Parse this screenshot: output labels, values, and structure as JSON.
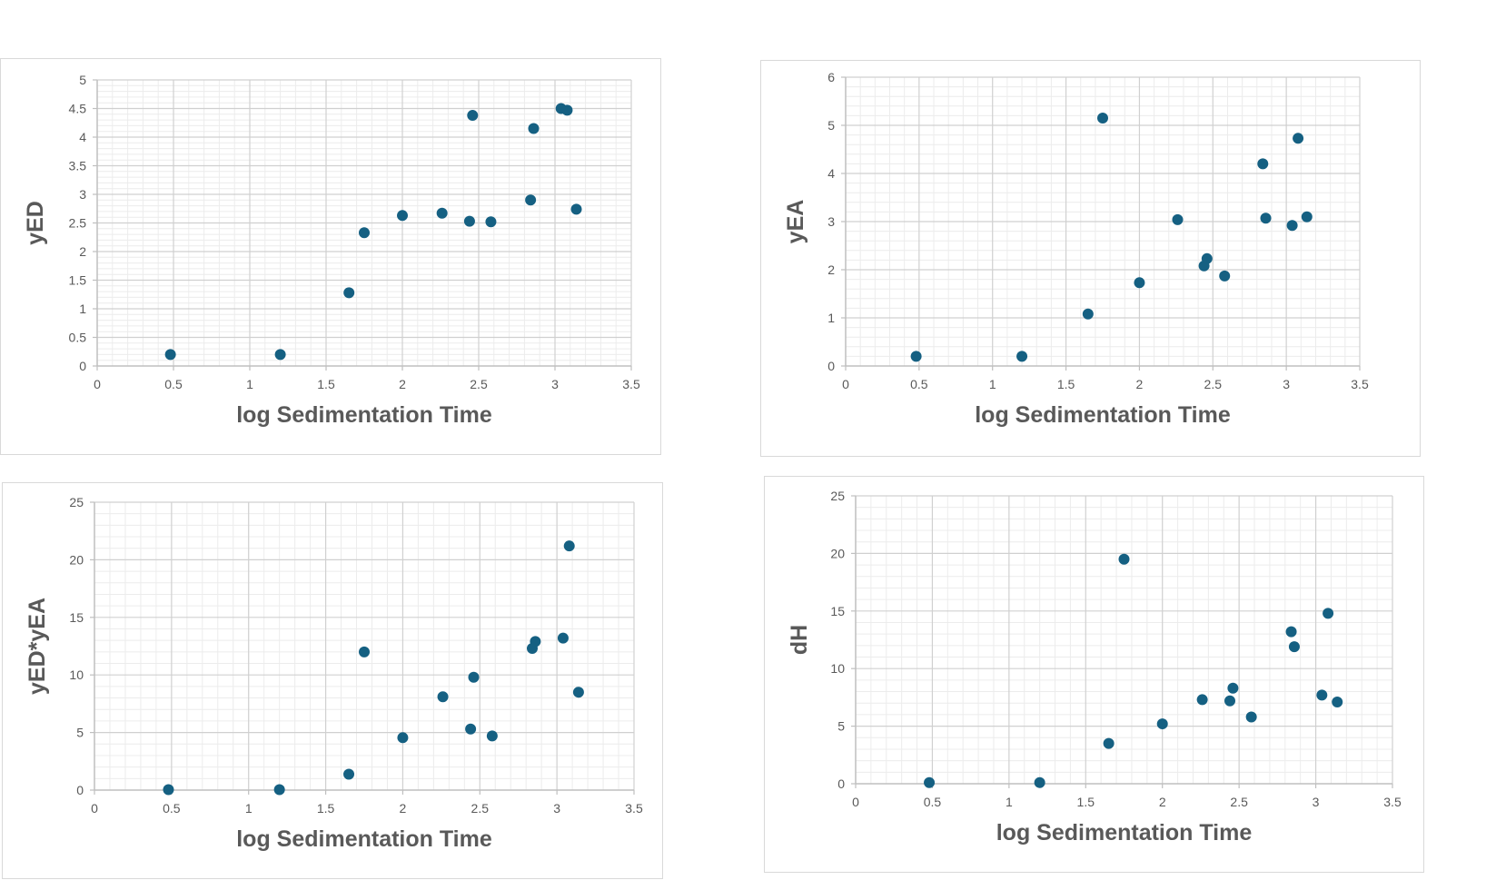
{
  "chart_data": [
    {
      "type": "scatter",
      "title": "",
      "xlabel": "log Sedimentation Time",
      "ylabel": "yED",
      "xlim": [
        0,
        3.5
      ],
      "ylim": [
        0,
        5
      ],
      "x_ticks": [
        "0",
        "0.5",
        "1",
        "1.5",
        "2",
        "2.5",
        "3",
        "3.5"
      ],
      "y_ticks": [
        "0",
        "0.5",
        "1",
        "1.5",
        "2",
        "2.5",
        "3",
        "3.5",
        "4",
        "4.5",
        "5"
      ],
      "grid": true,
      "legend": "none",
      "marker_color": "#156082",
      "points": [
        {
          "x": 0.48,
          "y": 0.2
        },
        {
          "x": 1.2,
          "y": 0.2
        },
        {
          "x": 1.65,
          "y": 1.28
        },
        {
          "x": 1.75,
          "y": 2.33
        },
        {
          "x": 2.0,
          "y": 2.63
        },
        {
          "x": 2.26,
          "y": 2.67
        },
        {
          "x": 2.44,
          "y": 2.53
        },
        {
          "x": 2.46,
          "y": 4.38
        },
        {
          "x": 2.58,
          "y": 2.52
        },
        {
          "x": 2.84,
          "y": 2.9
        },
        {
          "x": 2.86,
          "y": 4.15
        },
        {
          "x": 3.04,
          "y": 4.5
        },
        {
          "x": 3.08,
          "y": 4.47
        },
        {
          "x": 3.14,
          "y": 2.74
        }
      ]
    },
    {
      "type": "scatter",
      "title": "",
      "xlabel": "log Sedimentation Time",
      "ylabel": "yEA",
      "xlim": [
        0,
        3.5
      ],
      "ylim": [
        0,
        6
      ],
      "x_ticks": [
        "0",
        "0.5",
        "1",
        "1.5",
        "2",
        "2.5",
        "3",
        "3.5"
      ],
      "y_ticks": [
        "0",
        "1",
        "2",
        "3",
        "4",
        "5",
        "6"
      ],
      "grid": true,
      "legend": "none",
      "marker_color": "#156082",
      "points": [
        {
          "x": 0.48,
          "y": 0.2
        },
        {
          "x": 1.2,
          "y": 0.2
        },
        {
          "x": 1.65,
          "y": 1.08
        },
        {
          "x": 1.75,
          "y": 5.15
        },
        {
          "x": 2.0,
          "y": 1.73
        },
        {
          "x": 2.26,
          "y": 3.04
        },
        {
          "x": 2.44,
          "y": 2.08
        },
        {
          "x": 2.46,
          "y": 2.23
        },
        {
          "x": 2.58,
          "y": 1.87
        },
        {
          "x": 2.84,
          "y": 4.2
        },
        {
          "x": 2.86,
          "y": 3.07
        },
        {
          "x": 3.04,
          "y": 2.92
        },
        {
          "x": 3.08,
          "y": 4.73
        },
        {
          "x": 3.14,
          "y": 3.1
        }
      ]
    },
    {
      "type": "scatter",
      "title": "",
      "xlabel": "log Sedimentation Time",
      "ylabel": "yED*yEA",
      "xlim": [
        0,
        3.5
      ],
      "ylim": [
        0,
        25
      ],
      "x_ticks": [
        "0",
        "0.5",
        "1",
        "1.5",
        "2",
        "2.5",
        "3",
        "3.5"
      ],
      "y_ticks": [
        "0",
        "5",
        "10",
        "15",
        "20",
        "25"
      ],
      "grid": true,
      "legend": "none",
      "marker_color": "#156082",
      "points": [
        {
          "x": 0.48,
          "y": 0.04
        },
        {
          "x": 1.2,
          "y": 0.04
        },
        {
          "x": 1.65,
          "y": 1.38
        },
        {
          "x": 1.75,
          "y": 12.0
        },
        {
          "x": 2.0,
          "y": 4.55
        },
        {
          "x": 2.26,
          "y": 8.1
        },
        {
          "x": 2.44,
          "y": 5.3
        },
        {
          "x": 2.46,
          "y": 9.8
        },
        {
          "x": 2.58,
          "y": 4.7
        },
        {
          "x": 2.84,
          "y": 12.3
        },
        {
          "x": 2.86,
          "y": 12.9
        },
        {
          "x": 3.04,
          "y": 13.2
        },
        {
          "x": 3.08,
          "y": 21.2
        },
        {
          "x": 3.14,
          "y": 8.5
        }
      ]
    },
    {
      "type": "scatter",
      "title": "",
      "xlabel": "log Sedimentation Time",
      "ylabel": "dH",
      "xlim": [
        0,
        3.5
      ],
      "ylim": [
        0,
        25
      ],
      "x_ticks": [
        "0",
        "0.5",
        "1",
        "1.5",
        "2",
        "2.5",
        "3",
        "3.5"
      ],
      "y_ticks": [
        "0",
        "5",
        "10",
        "15",
        "20",
        "25"
      ],
      "grid": true,
      "legend": "none",
      "marker_color": "#156082",
      "points": [
        {
          "x": 0.48,
          "y": 0.1
        },
        {
          "x": 1.2,
          "y": 0.1
        },
        {
          "x": 1.65,
          "y": 3.5
        },
        {
          "x": 1.75,
          "y": 19.5
        },
        {
          "x": 2.0,
          "y": 5.2
        },
        {
          "x": 2.26,
          "y": 7.3
        },
        {
          "x": 2.44,
          "y": 7.2
        },
        {
          "x": 2.46,
          "y": 8.3
        },
        {
          "x": 2.58,
          "y": 5.8
        },
        {
          "x": 2.84,
          "y": 13.2
        },
        {
          "x": 2.86,
          "y": 11.9
        },
        {
          "x": 3.04,
          "y": 7.7
        },
        {
          "x": 3.08,
          "y": 14.8
        },
        {
          "x": 3.14,
          "y": 7.1
        }
      ]
    }
  ]
}
